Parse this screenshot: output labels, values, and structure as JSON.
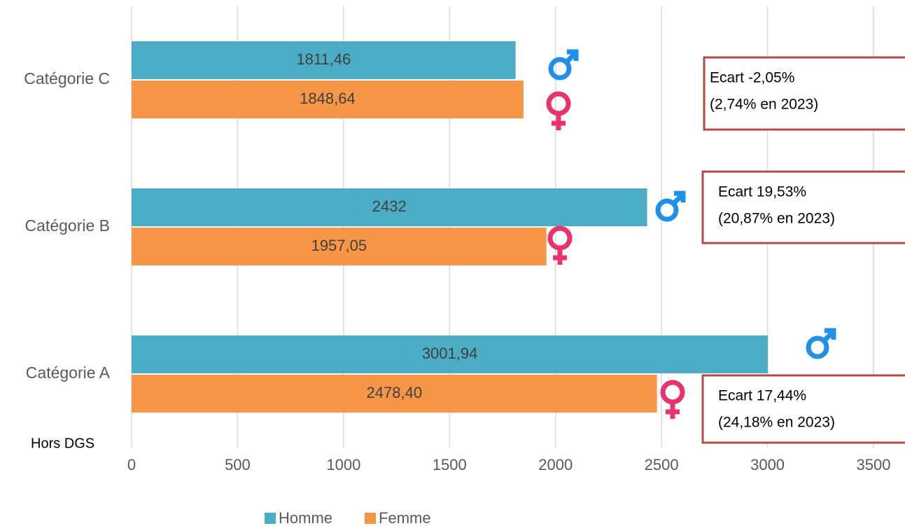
{
  "chart_data": {
    "type": "barh",
    "categories": [
      "Catégorie A",
      "Catégorie B",
      "Catégorie C"
    ],
    "series": [
      {
        "name": "Homme",
        "color": "#4bacc6",
        "values": [
          3001.94,
          2432,
          1811.46
        ],
        "value_labels": [
          "3001,94",
          "2432",
          "1811,46"
        ]
      },
      {
        "name": "Femme",
        "color": "#f79646",
        "values": [
          2478.4,
          1957.05,
          1848.64
        ],
        "value_labels": [
          "2478,40",
          "1957,05",
          "1848,64"
        ]
      }
    ],
    "xlim": [
      0,
      3500
    ],
    "xticks": [
      0,
      500,
      1000,
      1500,
      2000,
      2500,
      3000,
      3500
    ],
    "grid": true,
    "legend": "bottom",
    "footnote": "Hors DGS",
    "annotations": [
      [
        "Ecart 17,44%",
        "(24,18% en 2023)"
      ],
      [
        "Ecart 19,53%",
        "(20,87% en 2023)"
      ],
      [
        "Ecart -2,05%",
        "(2,74% en 2023)"
      ]
    ]
  }
}
